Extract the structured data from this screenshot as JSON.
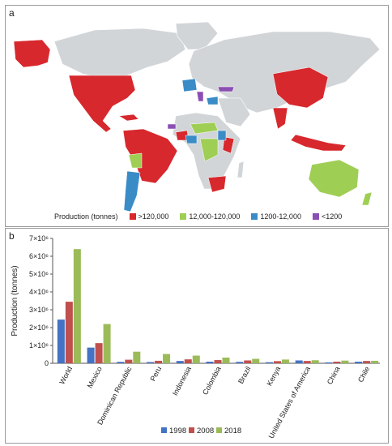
{
  "panel_a_label": "a",
  "panel_b_label": "b",
  "map_legend": {
    "title": "Production (tonnes)",
    "items": [
      {
        "label": ">120,000",
        "color": "#d7282d"
      },
      {
        "label": "12,000-120,000",
        "color": "#9fce55"
      },
      {
        "label": "1200-12,000",
        "color": "#3a8cc6"
      },
      {
        "label": "<1200",
        "color": "#8a4fb3"
      }
    ],
    "land_color": "#d2d5d8"
  },
  "chart_data": {
    "type": "bar",
    "title": "",
    "xlabel": "",
    "ylabel": "Production (tonnes)",
    "ylim": [
      0,
      7
    ],
    "y_multiplier": "10^6",
    "y_ticks": [
      "0",
      "1×10⁶",
      "2×10⁶",
      "3×10⁶",
      "4×10⁶",
      "5×10⁶",
      "6×10⁶",
      "7×10⁶"
    ],
    "categories": [
      "World",
      "Mexico",
      "Dominican Republic",
      "Peru",
      "Indonesia",
      "Colombia",
      "Brazil",
      "Kenya",
      "United States of America",
      "China",
      "Chile"
    ],
    "series": [
      {
        "name": "1998",
        "color": "#4472c4",
        "values": [
          2.45,
          0.88,
          0.08,
          0.07,
          0.13,
          0.09,
          0.08,
          0.06,
          0.16,
          0.05,
          0.09
        ]
      },
      {
        "name": "2008",
        "color": "#c0504d",
        "values": [
          3.45,
          1.13,
          0.2,
          0.14,
          0.22,
          0.18,
          0.16,
          0.12,
          0.13,
          0.09,
          0.13
        ]
      },
      {
        "name": "2018",
        "color": "#9bbb59",
        "values": [
          6.4,
          2.2,
          0.65,
          0.52,
          0.43,
          0.32,
          0.25,
          0.21,
          0.17,
          0.15,
          0.14
        ]
      }
    ],
    "legend_position": "bottom",
    "grid": false
  }
}
